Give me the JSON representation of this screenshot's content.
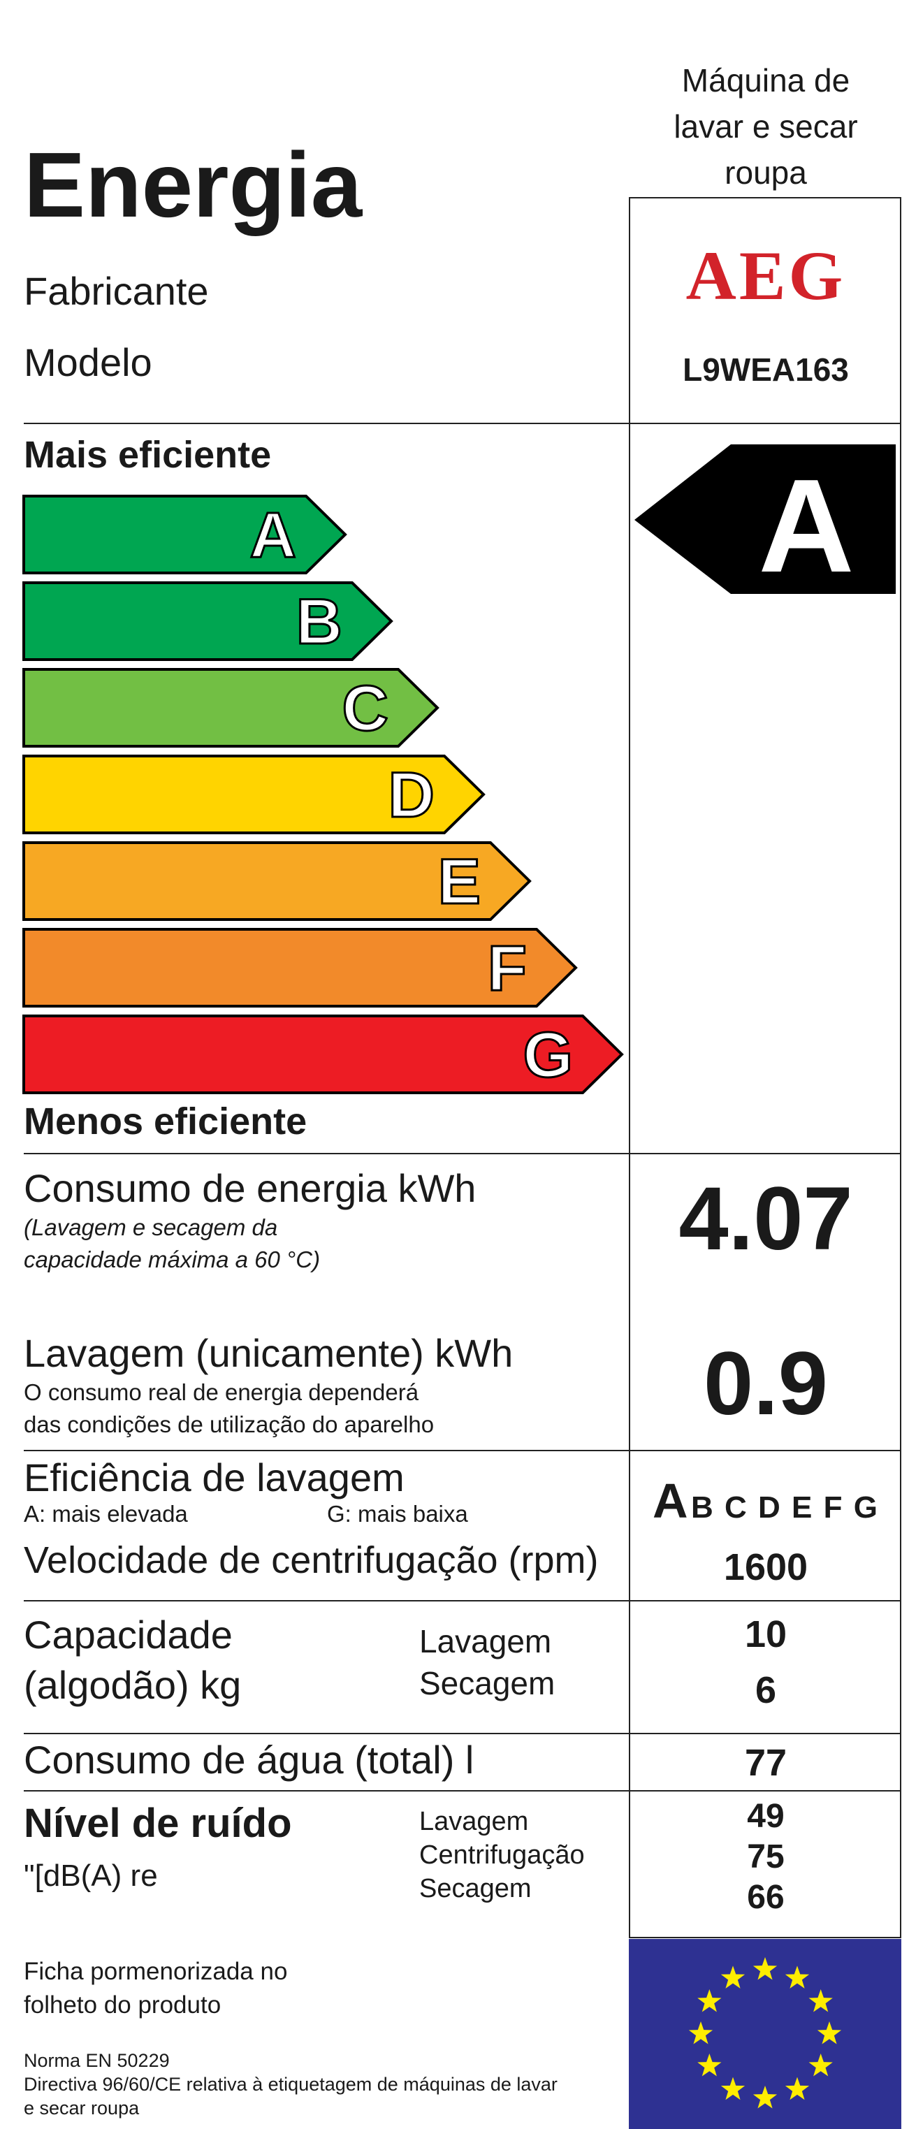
{
  "header": {
    "appliance_type": [
      "Máquina de",
      "lavar e secar",
      "roupa"
    ],
    "title": "Energia",
    "manufacturer_label": "Fabricante",
    "model_label": "Modelo",
    "brand": "AEG",
    "model": "L9WEA163"
  },
  "scale": {
    "top_label": "Mais eficiente",
    "bottom_label": "Menos eficiente",
    "classes": [
      {
        "letter": "A",
        "color": "#00a651"
      },
      {
        "letter": "B",
        "color": "#00a651"
      },
      {
        "letter": "C",
        "color": "#72bf44"
      },
      {
        "letter": "D",
        "color": "#ffd400"
      },
      {
        "letter": "E",
        "color": "#f7a823"
      },
      {
        "letter": "F",
        "color": "#f28a2a"
      },
      {
        "letter": "G",
        "color": "#ed1c24"
      }
    ],
    "rating": "A"
  },
  "energy": {
    "label": "Consumo de energia kWh",
    "note": [
      "(Lavagem e secagem da",
      "capacidade máxima a 60 °C)"
    ],
    "value": "4.07"
  },
  "wash_energy": {
    "label": "Lavagem (unicamente) kWh",
    "note": [
      "O consumo real de energia dependerá",
      "das condições de utilização do aparelho"
    ],
    "value": "0.9"
  },
  "wash_efficiency": {
    "label": "Eficiência de lavagem",
    "high_note": "A: mais elevada",
    "low_note": "G: mais baixa",
    "selected": "A",
    "others": "B C D E F G"
  },
  "spin": {
    "label": "Velocidade de centrifugação (rpm)",
    "value": "1600"
  },
  "capacity": {
    "label": [
      "Capacidade",
      "(algodão) kg"
    ],
    "wash_label": "Lavagem",
    "dry_label": "Secagem",
    "wash_value": "10",
    "dry_value": "6"
  },
  "water": {
    "label": "Consumo de água (total) l",
    "value": "77"
  },
  "noise": {
    "label": "Nível de ruído",
    "unit": "\"[dB(A) re",
    "wash_label": "Lavagem",
    "spin_label": "Centrifugação",
    "dry_label": "Secagem",
    "wash_value": "49",
    "spin_value": "75",
    "dry_value": "66"
  },
  "footer": {
    "info": [
      "Ficha pormenorizada no",
      "folheto do produto"
    ],
    "norm": "Norma EN 50229",
    "directive": [
      "Directiva 96/60/CE relativa à etiquetagem de máquinas de lavar",
      "e secar roupa"
    ]
  },
  "colors": {
    "eu_blue": "#2e3192",
    "eu_star": "#ffed00",
    "brand_red": "#d2232a"
  }
}
